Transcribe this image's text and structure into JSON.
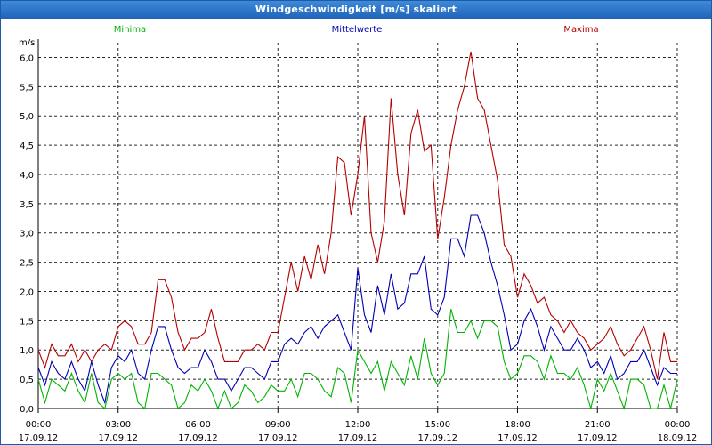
{
  "window": {
    "title": "Windgeschwindigkeit [m/s] skaliert"
  },
  "colors": {
    "minima": "#00b400",
    "mittel": "#0000b4",
    "maxima": "#b40000",
    "titlebar": "#2b74c8"
  },
  "chart_data": {
    "type": "line",
    "title": "Windgeschwindigkeit [m/s] skaliert",
    "ylabel": "m/s",
    "xlabel": "",
    "ylim": [
      0,
      6.25
    ],
    "xlim_hours": [
      0,
      24
    ],
    "grid": true,
    "legend_placement": "top",
    "yticks": [
      {
        "v": 0,
        "label": "0,0"
      },
      {
        "v": 0.5,
        "label": "0,5"
      },
      {
        "v": 1.0,
        "label": "1,0"
      },
      {
        "v": 1.5,
        "label": "1,5"
      },
      {
        "v": 2.0,
        "label": "2,0"
      },
      {
        "v": 2.5,
        "label": "2,5"
      },
      {
        "v": 3.0,
        "label": "3,0"
      },
      {
        "v": 3.5,
        "label": "3,5"
      },
      {
        "v": 4.0,
        "label": "4,0"
      },
      {
        "v": 4.5,
        "label": "4,5"
      },
      {
        "v": 5.0,
        "label": "5,0"
      },
      {
        "v": 5.5,
        "label": "5,5"
      },
      {
        "v": 6.0,
        "label": "6,0"
      }
    ],
    "xticks": [
      {
        "h": 0,
        "time": "00:00",
        "date": "17.09.12"
      },
      {
        "h": 3,
        "time": "03:00",
        "date": "17.09.12"
      },
      {
        "h": 6,
        "time": "06:00",
        "date": "17.09.12"
      },
      {
        "h": 9,
        "time": "09:00",
        "date": "17.09.12"
      },
      {
        "h": 12,
        "time": "12:00",
        "date": "17.09.12"
      },
      {
        "h": 15,
        "time": "15:00",
        "date": "17.09.12"
      },
      {
        "h": 18,
        "time": "18:00",
        "date": "17.09.12"
      },
      {
        "h": 21,
        "time": "21:00",
        "date": "17.09.12"
      },
      {
        "h": 24,
        "time": "00:00",
        "date": "18.09.12"
      }
    ],
    "series": [
      {
        "name": "Maxima",
        "color": "#b40000",
        "points": [
          [
            0,
            1.0
          ],
          [
            0.25,
            0.7
          ],
          [
            0.5,
            1.1
          ],
          [
            0.75,
            0.9
          ],
          [
            1.0,
            0.9
          ],
          [
            1.25,
            1.1
          ],
          [
            1.5,
            0.8
          ],
          [
            1.75,
            1.0
          ],
          [
            2.0,
            0.8
          ],
          [
            2.25,
            1.0
          ],
          [
            2.5,
            1.1
          ],
          [
            2.75,
            1.0
          ],
          [
            3.0,
            1.4
          ],
          [
            3.25,
            1.5
          ],
          [
            3.5,
            1.4
          ],
          [
            3.75,
            1.1
          ],
          [
            4.0,
            1.1
          ],
          [
            4.25,
            1.3
          ],
          [
            4.5,
            2.2
          ],
          [
            4.75,
            2.2
          ],
          [
            5.0,
            1.9
          ],
          [
            5.25,
            1.3
          ],
          [
            5.5,
            1.0
          ],
          [
            5.75,
            1.2
          ],
          [
            6.0,
            1.2
          ],
          [
            6.25,
            1.3
          ],
          [
            6.5,
            1.7
          ],
          [
            6.75,
            1.2
          ],
          [
            7.0,
            0.8
          ],
          [
            7.25,
            0.8
          ],
          [
            7.5,
            0.8
          ],
          [
            7.75,
            1.0
          ],
          [
            8.0,
            1.0
          ],
          [
            8.25,
            1.1
          ],
          [
            8.5,
            1.0
          ],
          [
            8.75,
            1.3
          ],
          [
            9.0,
            1.3
          ],
          [
            9.25,
            1.9
          ],
          [
            9.5,
            2.5
          ],
          [
            9.75,
            2.0
          ],
          [
            10.0,
            2.6
          ],
          [
            10.25,
            2.2
          ],
          [
            10.5,
            2.8
          ],
          [
            10.75,
            2.3
          ],
          [
            11.0,
            3.0
          ],
          [
            11.25,
            4.3
          ],
          [
            11.5,
            4.2
          ],
          [
            11.75,
            3.3
          ],
          [
            12.0,
            4.0
          ],
          [
            12.25,
            5.0
          ],
          [
            12.5,
            3.0
          ],
          [
            12.75,
            2.5
          ],
          [
            13.0,
            3.2
          ],
          [
            13.25,
            5.3
          ],
          [
            13.5,
            4.0
          ],
          [
            13.75,
            3.3
          ],
          [
            14.0,
            4.7
          ],
          [
            14.25,
            5.1
          ],
          [
            14.5,
            4.4
          ],
          [
            14.75,
            4.5
          ],
          [
            15.0,
            2.9
          ],
          [
            15.25,
            3.6
          ],
          [
            15.5,
            4.5
          ],
          [
            15.75,
            5.1
          ],
          [
            16.0,
            5.5
          ],
          [
            16.25,
            6.1
          ],
          [
            16.5,
            5.3
          ],
          [
            16.75,
            5.1
          ],
          [
            17.0,
            4.5
          ],
          [
            17.25,
            3.9
          ],
          [
            17.5,
            2.8
          ],
          [
            17.75,
            2.6
          ],
          [
            18.0,
            1.9
          ],
          [
            18.25,
            2.3
          ],
          [
            18.5,
            2.1
          ],
          [
            18.75,
            1.8
          ],
          [
            19.0,
            1.9
          ],
          [
            19.25,
            1.6
          ],
          [
            19.5,
            1.5
          ],
          [
            19.75,
            1.3
          ],
          [
            20.0,
            1.5
          ],
          [
            20.25,
            1.3
          ],
          [
            20.5,
            1.2
          ],
          [
            20.75,
            1.0
          ],
          [
            21.0,
            1.1
          ],
          [
            21.25,
            1.2
          ],
          [
            21.5,
            1.4
          ],
          [
            21.75,
            1.1
          ],
          [
            22.0,
            0.9
          ],
          [
            22.25,
            1.0
          ],
          [
            22.5,
            1.2
          ],
          [
            22.75,
            1.4
          ],
          [
            23.0,
            1.0
          ],
          [
            23.25,
            0.5
          ],
          [
            23.5,
            1.3
          ],
          [
            23.75,
            0.8
          ],
          [
            24.0,
            0.8
          ]
        ]
      },
      {
        "name": "Mittelwerte",
        "color": "#0000b4",
        "points": [
          [
            0,
            0.7
          ],
          [
            0.25,
            0.4
          ],
          [
            0.5,
            0.8
          ],
          [
            0.75,
            0.6
          ],
          [
            1.0,
            0.5
          ],
          [
            1.25,
            0.8
          ],
          [
            1.5,
            0.5
          ],
          [
            1.75,
            0.3
          ],
          [
            2.0,
            0.8
          ],
          [
            2.25,
            0.4
          ],
          [
            2.5,
            0.1
          ],
          [
            2.75,
            0.7
          ],
          [
            3.0,
            0.9
          ],
          [
            3.25,
            0.8
          ],
          [
            3.5,
            1.0
          ],
          [
            3.75,
            0.6
          ],
          [
            4.0,
            0.5
          ],
          [
            4.25,
            1.0
          ],
          [
            4.5,
            1.4
          ],
          [
            4.75,
            1.4
          ],
          [
            5.0,
            1.0
          ],
          [
            5.25,
            0.7
          ],
          [
            5.5,
            0.6
          ],
          [
            5.75,
            0.7
          ],
          [
            6.0,
            0.7
          ],
          [
            6.25,
            1.0
          ],
          [
            6.5,
            0.8
          ],
          [
            6.75,
            0.5
          ],
          [
            7.0,
            0.5
          ],
          [
            7.25,
            0.3
          ],
          [
            7.5,
            0.5
          ],
          [
            7.75,
            0.7
          ],
          [
            8.0,
            0.7
          ],
          [
            8.25,
            0.6
          ],
          [
            8.5,
            0.5
          ],
          [
            8.75,
            0.8
          ],
          [
            9.0,
            0.8
          ],
          [
            9.25,
            1.1
          ],
          [
            9.5,
            1.2
          ],
          [
            9.75,
            1.1
          ],
          [
            10.0,
            1.3
          ],
          [
            10.25,
            1.4
          ],
          [
            10.5,
            1.2
          ],
          [
            10.75,
            1.4
          ],
          [
            11.0,
            1.5
          ],
          [
            11.25,
            1.6
          ],
          [
            11.5,
            1.3
          ],
          [
            11.75,
            1.0
          ],
          [
            12.0,
            2.4
          ],
          [
            12.25,
            1.6
          ],
          [
            12.5,
            1.3
          ],
          [
            12.75,
            2.1
          ],
          [
            13.0,
            1.6
          ],
          [
            13.25,
            2.3
          ],
          [
            13.5,
            1.7
          ],
          [
            13.75,
            1.8
          ],
          [
            14.0,
            2.3
          ],
          [
            14.25,
            2.3
          ],
          [
            14.5,
            2.6
          ],
          [
            14.75,
            1.7
          ],
          [
            15.0,
            1.6
          ],
          [
            15.25,
            1.9
          ],
          [
            15.5,
            2.9
          ],
          [
            15.75,
            2.9
          ],
          [
            16.0,
            2.6
          ],
          [
            16.25,
            3.3
          ],
          [
            16.5,
            3.3
          ],
          [
            16.75,
            3.0
          ],
          [
            17.0,
            2.5
          ],
          [
            17.25,
            2.1
          ],
          [
            17.5,
            1.6
          ],
          [
            17.75,
            1.0
          ],
          [
            18.0,
            1.1
          ],
          [
            18.25,
            1.5
          ],
          [
            18.5,
            1.7
          ],
          [
            18.75,
            1.4
          ],
          [
            19.0,
            1.0
          ],
          [
            19.25,
            1.4
          ],
          [
            19.5,
            1.2
          ],
          [
            19.75,
            1.0
          ],
          [
            20.0,
            1.0
          ],
          [
            20.25,
            1.2
          ],
          [
            20.5,
            1.0
          ],
          [
            20.75,
            0.7
          ],
          [
            21.0,
            0.8
          ],
          [
            21.25,
            0.6
          ],
          [
            21.5,
            0.9
          ],
          [
            21.75,
            0.5
          ],
          [
            22.0,
            0.6
          ],
          [
            22.25,
            0.8
          ],
          [
            22.5,
            0.8
          ],
          [
            22.75,
            1.0
          ],
          [
            23.0,
            0.7
          ],
          [
            23.25,
            0.4
          ],
          [
            23.5,
            0.7
          ],
          [
            23.75,
            0.6
          ],
          [
            24.0,
            0.6
          ]
        ]
      },
      {
        "name": "Minima",
        "color": "#00b400",
        "points": [
          [
            0,
            0.5
          ],
          [
            0.25,
            0.1
          ],
          [
            0.5,
            0.5
          ],
          [
            0.75,
            0.4
          ],
          [
            1.0,
            0.3
          ],
          [
            1.25,
            0.6
          ],
          [
            1.5,
            0.3
          ],
          [
            1.75,
            0.1
          ],
          [
            2.0,
            0.6
          ],
          [
            2.25,
            0.1
          ],
          [
            2.5,
            0.0
          ],
          [
            2.75,
            0.5
          ],
          [
            3.0,
            0.6
          ],
          [
            3.25,
            0.5
          ],
          [
            3.5,
            0.6
          ],
          [
            3.75,
            0.1
          ],
          [
            4.0,
            0.0
          ],
          [
            4.25,
            0.6
          ],
          [
            4.5,
            0.6
          ],
          [
            4.75,
            0.5
          ],
          [
            5.0,
            0.4
          ],
          [
            5.25,
            0.0
          ],
          [
            5.5,
            0.1
          ],
          [
            5.75,
            0.4
          ],
          [
            6.0,
            0.3
          ],
          [
            6.25,
            0.5
          ],
          [
            6.5,
            0.3
          ],
          [
            6.75,
            0.0
          ],
          [
            7.0,
            0.3
          ],
          [
            7.25,
            0.0
          ],
          [
            7.5,
            0.1
          ],
          [
            7.75,
            0.4
          ],
          [
            8.0,
            0.3
          ],
          [
            8.25,
            0.1
          ],
          [
            8.5,
            0.2
          ],
          [
            8.75,
            0.4
          ],
          [
            9.0,
            0.3
          ],
          [
            9.25,
            0.3
          ],
          [
            9.5,
            0.5
          ],
          [
            9.75,
            0.2
          ],
          [
            10.0,
            0.6
          ],
          [
            10.25,
            0.6
          ],
          [
            10.5,
            0.5
          ],
          [
            10.75,
            0.3
          ],
          [
            11.0,
            0.2
          ],
          [
            11.25,
            0.7
          ],
          [
            11.5,
            0.6
          ],
          [
            11.75,
            0.1
          ],
          [
            12.0,
            1.0
          ],
          [
            12.25,
            0.8
          ],
          [
            12.5,
            0.6
          ],
          [
            12.75,
            0.8
          ],
          [
            13.0,
            0.3
          ],
          [
            13.25,
            0.8
          ],
          [
            13.5,
            0.6
          ],
          [
            13.75,
            0.4
          ],
          [
            14.0,
            0.9
          ],
          [
            14.25,
            0.5
          ],
          [
            14.5,
            1.2
          ],
          [
            14.75,
            0.6
          ],
          [
            15.0,
            0.4
          ],
          [
            15.25,
            0.6
          ],
          [
            15.5,
            1.7
          ],
          [
            15.75,
            1.3
          ],
          [
            16.0,
            1.3
          ],
          [
            16.25,
            1.5
          ],
          [
            16.5,
            1.2
          ],
          [
            16.75,
            1.5
          ],
          [
            17.0,
            1.5
          ],
          [
            17.25,
            1.4
          ],
          [
            17.5,
            0.8
          ],
          [
            17.75,
            0.5
          ],
          [
            18.0,
            0.6
          ],
          [
            18.25,
            0.9
          ],
          [
            18.5,
            0.9
          ],
          [
            18.75,
            0.8
          ],
          [
            19.0,
            0.5
          ],
          [
            19.25,
            0.9
          ],
          [
            19.5,
            0.6
          ],
          [
            19.75,
            0.6
          ],
          [
            20.0,
            0.5
          ],
          [
            20.25,
            0.7
          ],
          [
            20.5,
            0.4
          ],
          [
            20.75,
            0.0
          ],
          [
            21.0,
            0.5
          ],
          [
            21.25,
            0.3
          ],
          [
            21.5,
            0.6
          ],
          [
            21.75,
            0.3
          ],
          [
            22.0,
            0.0
          ],
          [
            22.25,
            0.5
          ],
          [
            22.5,
            0.5
          ],
          [
            22.75,
            0.4
          ],
          [
            23.0,
            0.0
          ],
          [
            23.25,
            0.0
          ],
          [
            23.5,
            0.4
          ],
          [
            23.75,
            0.0
          ],
          [
            24.0,
            0.5
          ]
        ]
      }
    ]
  }
}
